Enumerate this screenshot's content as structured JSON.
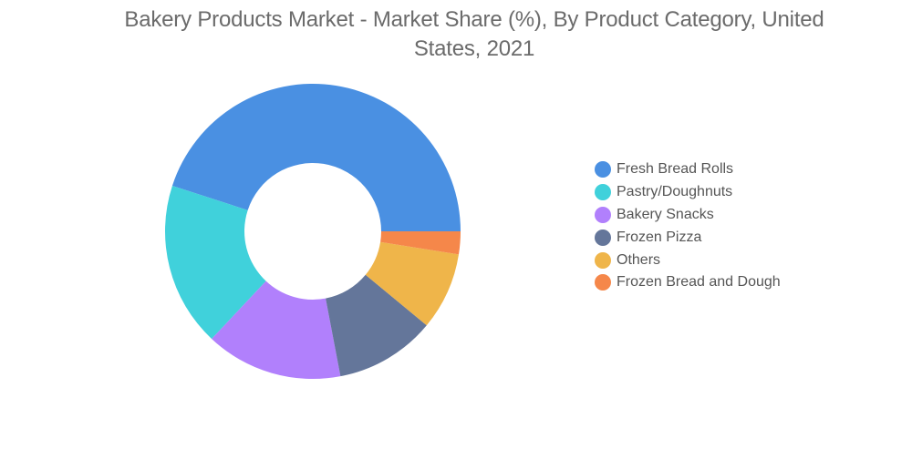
{
  "chart_data": {
    "type": "pie",
    "title": "Bakery Products Market - Market Share (%), By Product Category, United States, 2021",
    "categories": [
      "Fresh Bread Rolls",
      "Pastry/Doughnuts",
      "Bakery Snacks",
      "Frozen Pizza",
      "Others",
      "Frozen Bread and Dough"
    ],
    "values": [
      45,
      18,
      15,
      11,
      8.5,
      2.5
    ],
    "colors": [
      "#4a90e2",
      "#40d1db",
      "#b180fc",
      "#64769a",
      "#efb54a",
      "#f5874a"
    ],
    "legend_position": "right"
  }
}
